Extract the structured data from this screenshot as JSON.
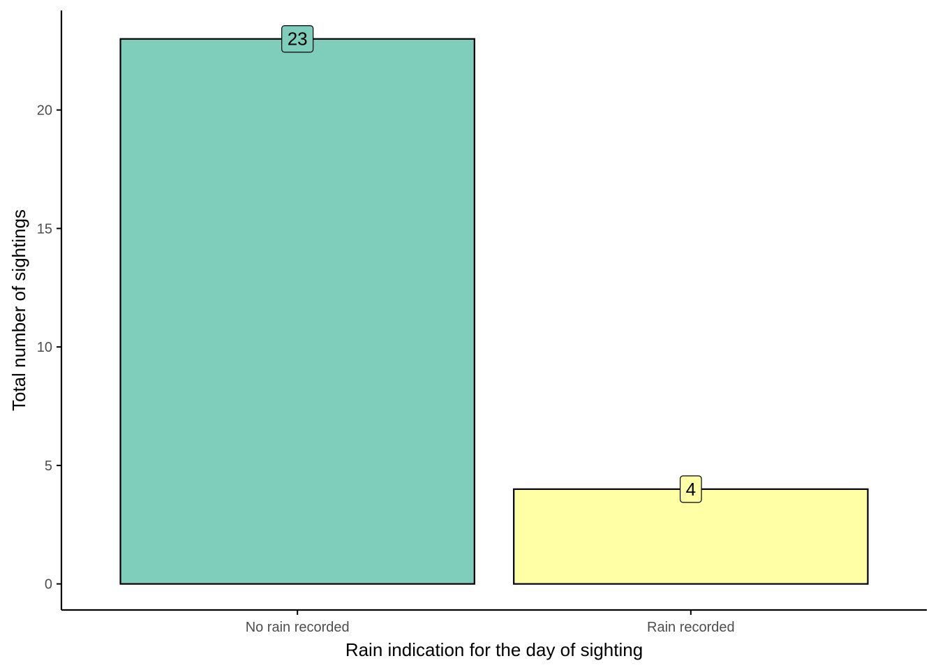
{
  "chart_data": {
    "type": "bar",
    "categories": [
      "No rain recorded",
      "Rain recorded"
    ],
    "values": [
      23,
      4
    ],
    "data_labels": [
      "23",
      "4"
    ],
    "colors": [
      "#7FCDBB",
      "#FFFFA5"
    ],
    "title": "",
    "xlabel": "Rain indication for the day of sighting",
    "ylabel": "Total number of sightings",
    "ylim": [
      -1.1,
      24.2
    ],
    "yticks": [
      0,
      5,
      10,
      15,
      20
    ],
    "ytick_labels": [
      "0",
      "5",
      "10",
      "15",
      "20"
    ],
    "grid": false,
    "legend": "none"
  }
}
